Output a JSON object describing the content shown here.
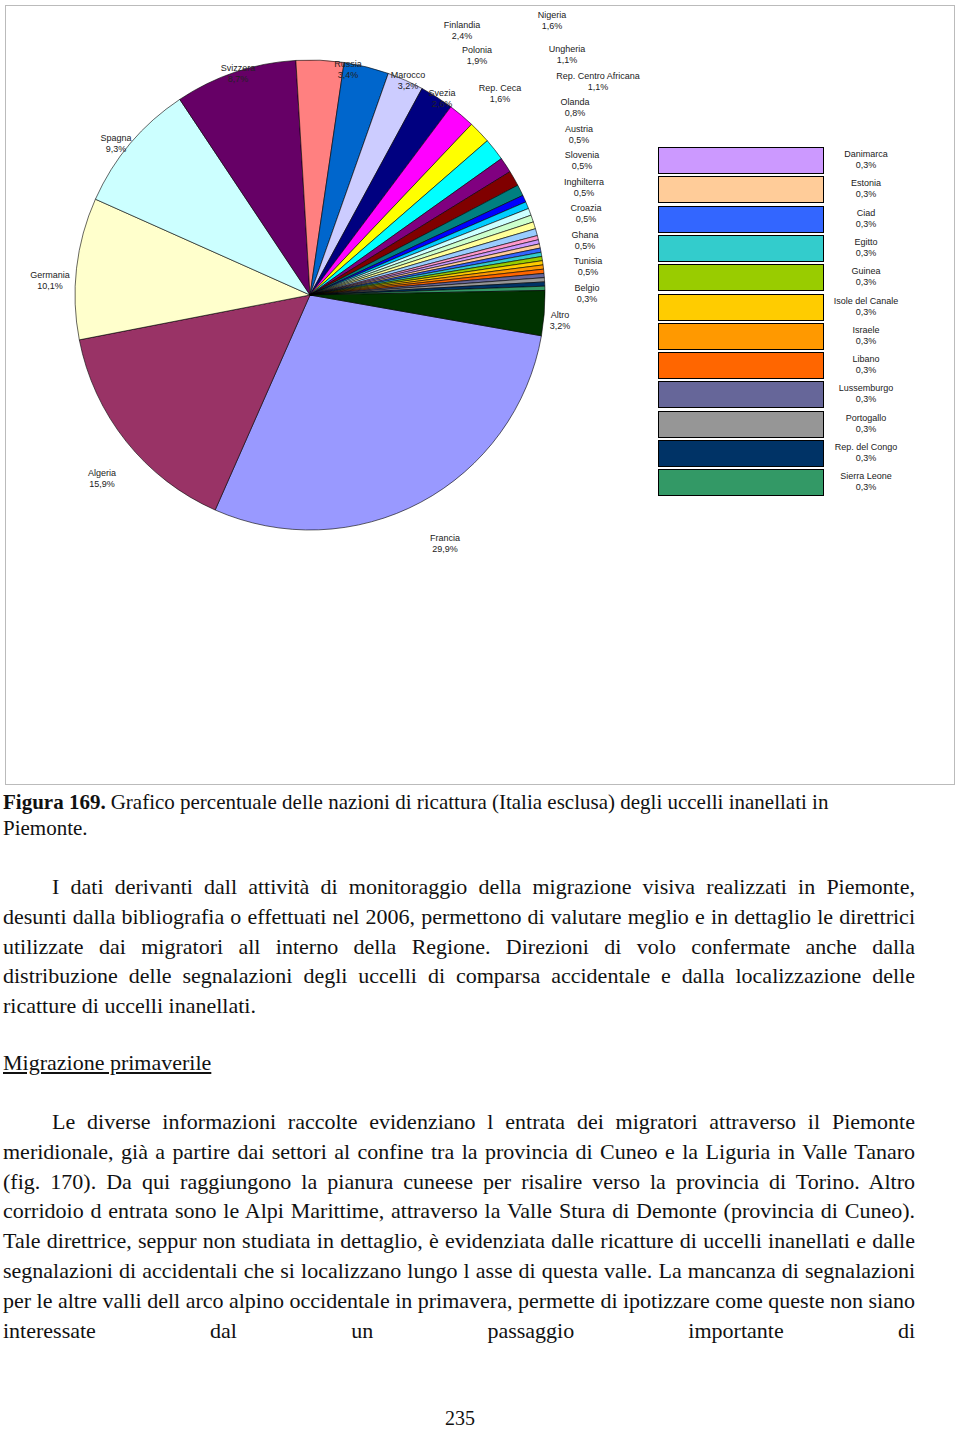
{
  "chart_data": {
    "type": "pie",
    "categories": [
      "Francia",
      "Algeria",
      "Germania",
      "Spagna",
      "Svizzera",
      "Russia",
      "Marocco",
      "Svezia",
      "Finlandia",
      "Polonia",
      "Rep. Ceca",
      "Nigeria",
      "Ungheria",
      "Rep. Centro Africana",
      "Olanda",
      "Austria",
      "Slovenia",
      "Inghilterra",
      "Croazia",
      "Ghana",
      "Tunisia",
      "Belgio",
      "Danimarca",
      "Estonia",
      "Ciad",
      "Egitto",
      "Guinea",
      "Isole del Canale",
      "Israele",
      "Libano",
      "Lussemburgo",
      "Portogallo",
      "Rep. del Congo",
      "Sierra Leone",
      "Altro"
    ],
    "values": [
      29.9,
      15.9,
      10.1,
      9.3,
      8.7,
      3.4,
      3.2,
      2.6,
      2.4,
      1.9,
      1.6,
      1.6,
      1.1,
      1.1,
      0.8,
      0.5,
      0.5,
      0.5,
      0.5,
      0.5,
      0.5,
      0.3,
      0.3,
      0.3,
      0.3,
      0.3,
      0.3,
      0.3,
      0.3,
      0.3,
      0.3,
      0.3,
      0.3,
      0.3,
      3.2
    ],
    "value_labels": [
      "29,9%",
      "15,9%",
      "10,1%",
      "9,3%",
      "8,7%",
      "3,4%",
      "3,2%",
      "2,6%",
      "2,4%",
      "1,9%",
      "1,6%",
      "1,6%",
      "1,1%",
      "1,1%",
      "0,8%",
      "0,5%",
      "0,5%",
      "0,5%",
      "0,5%",
      "0,5%",
      "0,5%",
      "0,3%",
      "0,3%",
      "0,3%",
      "0,3%",
      "0,3%",
      "0,3%",
      "0,3%",
      "0,3%",
      "0,3%",
      "0,3%",
      "0,3%",
      "0,3%",
      "0,3%",
      "3,2%"
    ],
    "colors": [
      "#9999FF",
      "#993366",
      "#FFFFCC",
      "#CCFFFF",
      "#660066",
      "#FF8080",
      "#0066CC",
      "#CCCCFF",
      "#000080",
      "#FF00FF",
      "#FFFF00",
      "#00FFFF",
      "#800080",
      "#800000",
      "#008080",
      "#0000FF",
      "#00CCFF",
      "#CCFFFF",
      "#CCFFCC",
      "#FFFF99",
      "#99CCFF",
      "#FF99CC",
      "#CC99FF",
      "#FFCC99",
      "#3366FF",
      "#33CCCC",
      "#99CC00",
      "#FFCC00",
      "#FF9900",
      "#FF6600",
      "#666699",
      "#969696",
      "#003366",
      "#339966",
      "#003300"
    ],
    "data_labels": true,
    "legend": "right"
  },
  "document": {
    "caption": {
      "label": "Figura 169.",
      "text": "Grafico percentuale delle nazioni di ricattura (Italia esclusa) degli uccelli inanellati in Piemonte."
    },
    "paragraph_1": "I dati derivanti dall attività di monitoraggio della migrazione visiva realizzati in Piemonte, desunti dalla bibliografia o effettuati nel 2006, permettono di valutare meglio e in dettaglio le direttrici utilizzate dai migratori all interno della Regione. Direzioni di volo confermate anche dalla distribuzione delle segnalazioni degli uccelli di comparsa accidentale e dalla localizzazione delle ricatture di uccelli inanellati.",
    "heading": "Migrazione primaverile",
    "paragraph_2": "Le diverse informazioni raccolte evidenziano l entrata dei migratori attraverso il Piemonte meridionale, già a partire dai settori al confine tra la provincia di Cuneo e la Liguria in Valle Tanaro (fig. 170). Da qui raggiungono la pianura cuneese per risalire verso la provincia di Torino. Altro corridoio d entrata sono le Alpi Marittime, attraverso la Valle Stura di Demonte (provincia di Cuneo). Tale direttrice, seppur non studiata in dettaglio, è evidenziata dalle ricatture di uccelli inanellati e dalle segnalazioni di accidentali che si localizzano lungo l asse di questa valle. La mancanza di segnalazioni per le altre valli dell arco alpino occidentale in primavera, permette di ipotizzare come queste non siano interessate dal un passaggio importante di",
    "page_number": "235"
  }
}
